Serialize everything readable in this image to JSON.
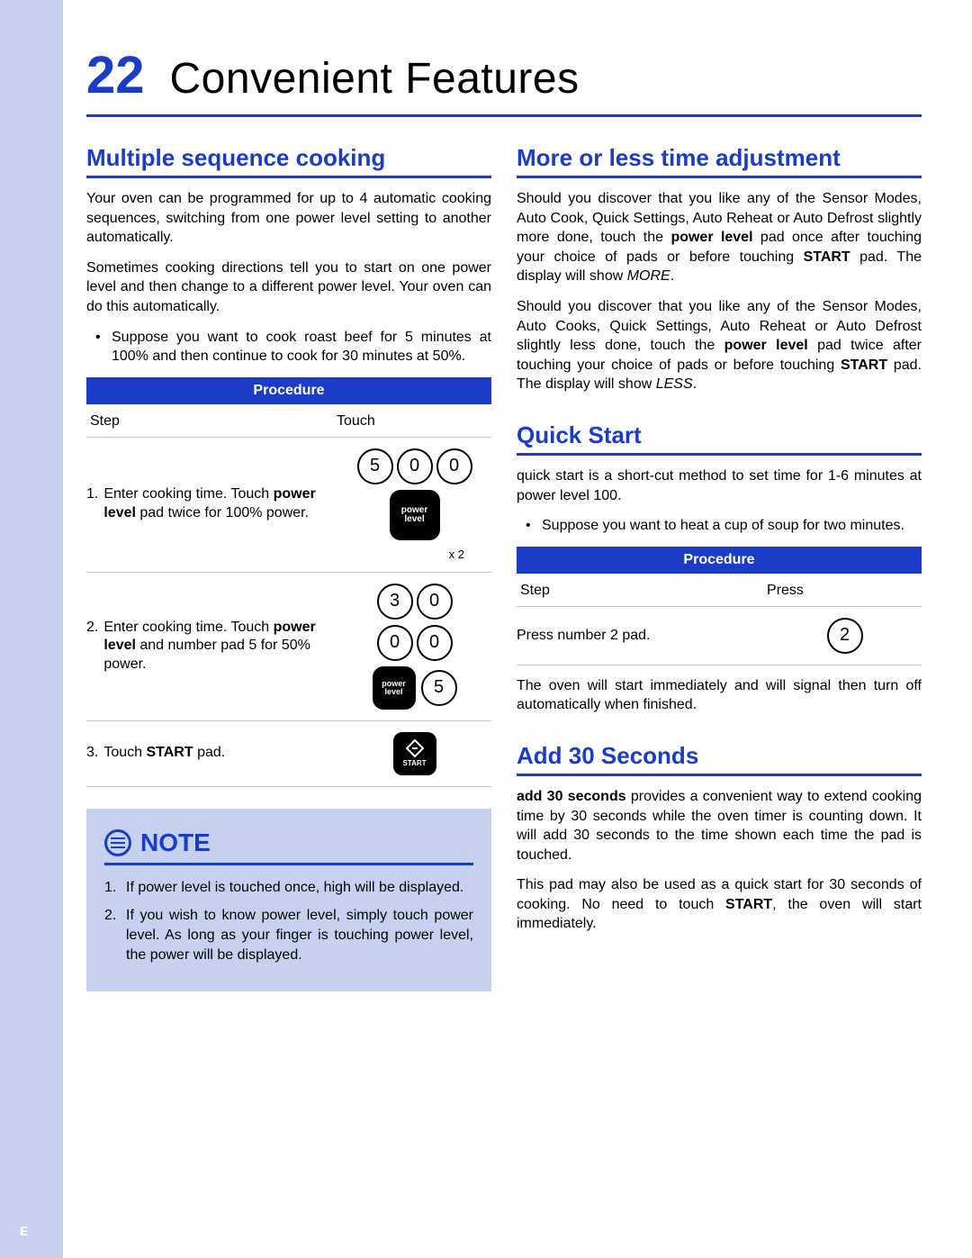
{
  "colors": {
    "brand_blue": "#1a3cc6",
    "sidebar_blue": "#c5d1ef",
    "text": "#000000",
    "border_gray": "#c8c8c8",
    "white": "#ffffff"
  },
  "page": {
    "number": "22",
    "title": "Convenient Features",
    "strip_letter": "E"
  },
  "left": {
    "h1": "Multiple sequence cooking",
    "p1": "Your oven can be programmed for up to 4 automatic cooking sequences, switching from one power level setting to another automatically.",
    "p2": "Sometimes cooking directions tell you to start on one power level and then change to a different power level. Your oven can do this automatically.",
    "bullet": "Suppose you want to cook roast beef for 5 minutes at 100% and then continue to cook for 30 minutes at 50%.",
    "procedure": {
      "header": "Procedure",
      "col1": "Step",
      "col2": "Touch",
      "rows": [
        {
          "n": "1.",
          "text_html": "Enter cooking time. Touch <b>power level</b> pad twice for 100% power.",
          "keys": {
            "digits_row1": [
              "5",
              "0",
              "0"
            ],
            "square_label": "power\nlevel",
            "x2": "x 2"
          }
        },
        {
          "n": "2.",
          "text_html": "Enter cooking time. Touch <b>power level</b> and number pad 5 for 50% power.",
          "keys": {
            "digits_row1": [
              "3",
              "0"
            ],
            "digits_row2": [
              "0",
              "0"
            ],
            "square_label": "power\nlevel",
            "extra_digit": "5"
          }
        },
        {
          "n": "3.",
          "text_html": "Touch <b>START</b> pad.",
          "keys": {
            "start_label": "START"
          }
        }
      ]
    },
    "note": {
      "title": "NOTE",
      "items": [
        "If power level is touched once, high will be displayed.",
        "If you wish to know power level, simply touch power level. As long as your finger is touching power level, the power will be displayed."
      ]
    }
  },
  "right": {
    "s1": {
      "h": "More or less time adjustment",
      "p1_html": "Should you discover that you like any of the Sensor Modes, Auto Cook, Quick Settings, Auto Reheat or Auto Defrost slightly more done, touch the <b>power level</b> pad once after touching your choice of pads or before touching <b>START</b> pad. The display will show <i>MORE</i>.",
      "p2_html": "Should you discover that you like any of the Sensor Modes, Auto Cooks, Quick Settings, Auto Reheat or Auto Defrost slightly less done, touch the <b>power level</b> pad twice after touching your choice of pads or before touching <b>START</b> pad. The display will show <i>LESS</i>."
    },
    "s2": {
      "h": "Quick Start",
      "p1": "quick start is a short-cut method to set time for 1-6 minutes at power level 100.",
      "bullet": "Suppose you want to heat a cup of soup for two minutes.",
      "procedure": {
        "header": "Procedure",
        "col1": "Step",
        "col2": "Press",
        "row_text": "Press number 2 pad.",
        "key_digit": "2"
      },
      "p2": "The oven will start immediately and will signal then turn off automatically when finished."
    },
    "s3": {
      "h": "Add 30 Seconds",
      "p1_html": "<b>add 30 seconds</b> provides a convenient way to extend cooking time by 30 seconds while the oven timer is counting down. It will add 30 seconds to the time shown each time the pad is touched.",
      "p2_html": "This pad may also be used as a quick start for 30 seconds of cooking. No need to touch <b>START</b>, the oven will start immediately."
    }
  }
}
